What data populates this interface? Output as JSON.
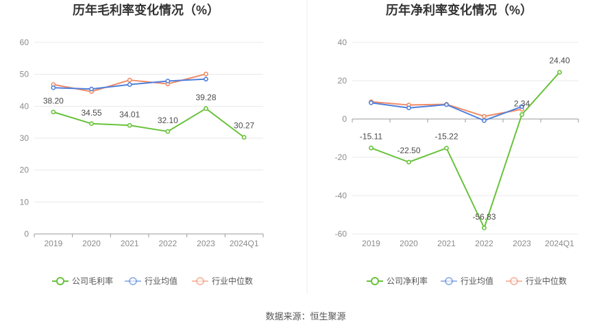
{
  "colors": {
    "company": "#67c23a",
    "industry_avg": "#4e7fdc",
    "industry_median": "#f08a65",
    "axis": "#999999",
    "grid": "#e8e8e8",
    "divider": "#eeeeee"
  },
  "source": "数据来源：恒生聚源",
  "chart_data": [
    {
      "type": "line",
      "title": "历年毛利率变化情况（%）",
      "categories": [
        "2019",
        "2020",
        "2021",
        "2022",
        "2023",
        "2024Q1"
      ],
      "ylim": [
        0,
        60
      ],
      "yticks": [
        0,
        10,
        20,
        30,
        40,
        50,
        60
      ],
      "ytick_labels": [
        "0",
        "10",
        "20",
        "30",
        "40",
        "50",
        "60"
      ],
      "grid": true,
      "legend_position": "bottom",
      "series": [
        {
          "name": "公司毛利率",
          "color_key": "company",
          "values": [
            38.2,
            34.55,
            34.01,
            32.1,
            39.28,
            30.27
          ],
          "labels": [
            "38.20",
            "34.55",
            "34.01",
            "32.10",
            "39.28",
            "30.27"
          ]
        },
        {
          "name": "行业均值",
          "color_key": "industry_avg",
          "values": [
            45.8,
            45.4,
            46.8,
            47.9,
            48.5,
            null
          ]
        },
        {
          "name": "行业中位数",
          "color_key": "industry_median",
          "values": [
            46.8,
            44.6,
            48.2,
            47.0,
            50.1,
            null
          ]
        }
      ]
    },
    {
      "type": "line",
      "title": "历年净利率变化情况（%）",
      "categories": [
        "2019",
        "2020",
        "2021",
        "2022",
        "2023",
        "2024Q1"
      ],
      "ylim": [
        -60,
        40
      ],
      "yticks": [
        -60,
        -40,
        -20,
        0,
        20,
        40
      ],
      "ytick_labels": [
        "-60",
        "-40",
        "-20",
        "0",
        "20",
        "40"
      ],
      "grid": true,
      "legend_position": "bottom",
      "series": [
        {
          "name": "公司净利率",
          "color_key": "company",
          "values": [
            -15.11,
            -22.5,
            -15.22,
            -56.83,
            2.34,
            24.4
          ],
          "labels": [
            "-15.11",
            "-22.50",
            "-15.22",
            "-56.83",
            "2.34",
            "24.40"
          ]
        },
        {
          "name": "行业均值",
          "color_key": "industry_avg",
          "values": [
            8.5,
            5.8,
            7.5,
            -0.8,
            6.5,
            null
          ]
        },
        {
          "name": "行业中位数",
          "color_key": "industry_median",
          "values": [
            9.0,
            7.3,
            7.7,
            1.4,
            5.1,
            null
          ]
        }
      ]
    }
  ]
}
